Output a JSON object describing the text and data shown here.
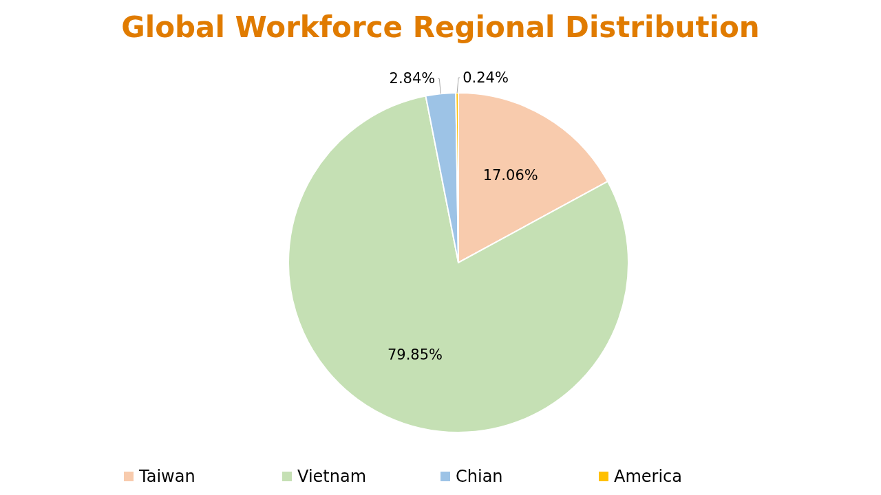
{
  "chart_data": {
    "type": "pie",
    "title": "Global Workforce Regional Distribution",
    "categories": [
      "Taiwan",
      "Vietnam",
      "Chian",
      "America"
    ],
    "values": [
      17.06,
      79.85,
      2.84,
      0.24
    ],
    "value_labels": [
      "17.06%",
      "79.85%",
      "2.84%",
      "0.24%"
    ],
    "colors": [
      "#f8cbad",
      "#c5e0b4",
      "#9dc3e6",
      "#ffc000"
    ],
    "legend": "bottom"
  }
}
